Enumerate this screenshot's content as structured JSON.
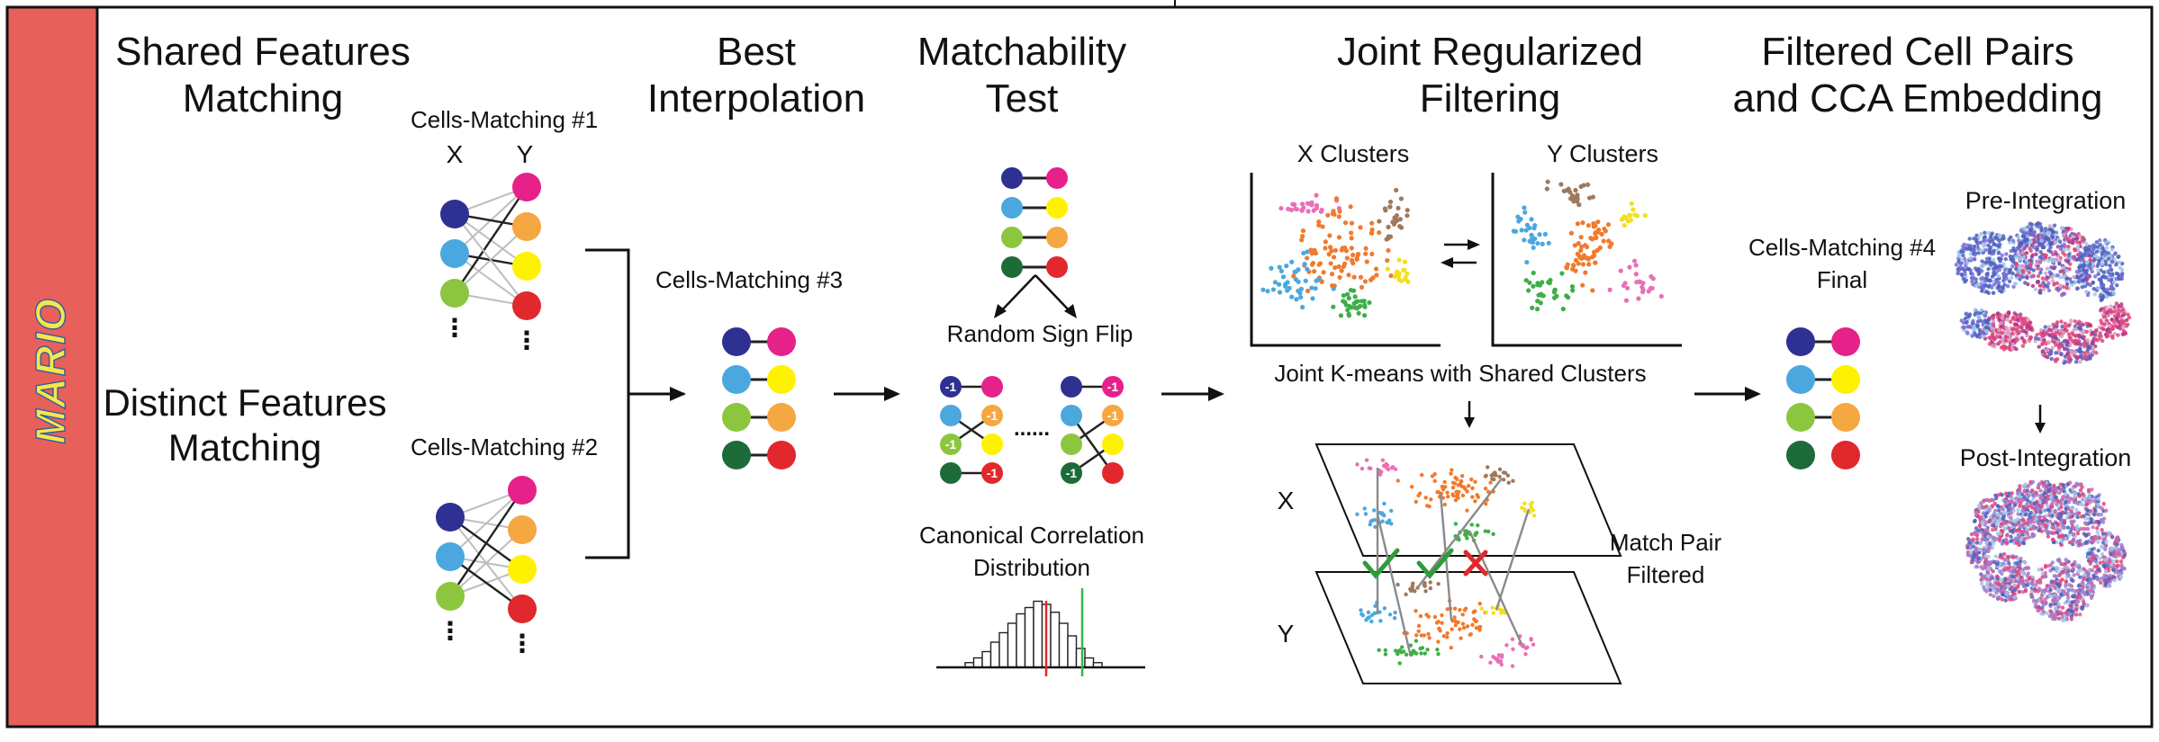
{
  "sidebar": {
    "logo_text": "MARIO"
  },
  "stages": {
    "shared_matching": "Shared Features\nMatching",
    "best_interpolation": "Best\nInterpolation",
    "matchability_test": "Matchability\nTest",
    "joint_filtering": "Joint Regularized\nFiltering",
    "final_embedding": "Filtered Cell Pairs\nand CCA Embedding",
    "distinct_matching": "Distinct Features\nMatching"
  },
  "labels": {
    "cells_matching_1": "Cells-Matching #1",
    "axis_x": "X",
    "axis_y": "Y",
    "cells_matching_2": "Cells-Matching #2",
    "cells_matching_3": "Cells-Matching #3",
    "random_sign_flip": "Random Sign Flip",
    "canonical_corr": "Canonical Correlation\nDistribution",
    "x_clusters": "X Clusters",
    "y_clusters": "Y Clusters",
    "joint_kmeans": "Joint K-means with Shared Clusters",
    "plane_x": "X",
    "plane_y": "Y",
    "match_pair_filtered": "Match Pair\nFiltered",
    "cells_matching_4": "Cells-Matching #4\nFinal",
    "pre_integration": "Pre-Integration",
    "post_integration": "Post-Integration",
    "sign_minus_one": "-1",
    "ellipsis_dots": "......",
    "vertical_dots": "⋮"
  },
  "colors": {
    "sidebar": "#e8605a",
    "navy": "#2e3192",
    "skyblue": "#4aa8de",
    "lightgreen": "#8cc63f",
    "darkgreen": "#1e6b3a",
    "magenta": "#e6218a",
    "orange": "#f5a742",
    "yellow": "#fff200",
    "red": "#e1282d",
    "brown": "#a0795a",
    "pink": "#ea6fb5",
    "cluster_orange": "#f07a2e",
    "tsne_blue": "#4f5fbf",
    "tsne_pink": "#e0457a",
    "tsne_light": "#9fc7ea",
    "check": "#2e9c3a",
    "cross": "#e1282d"
  }
}
